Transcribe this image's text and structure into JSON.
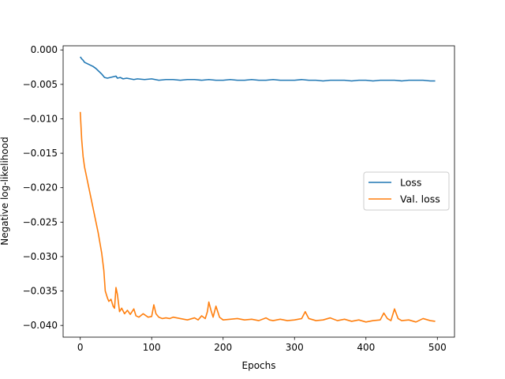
{
  "chart_data": {
    "type": "line",
    "xlabel": "Epochs",
    "ylabel": "Negative log-likelihood",
    "xlim": [
      -24,
      524
    ],
    "ylim": [
      -0.0417,
      0.0006
    ],
    "xticks": [
      0,
      100,
      200,
      300,
      400,
      500
    ],
    "xtick_labels": [
      "0",
      "100",
      "200",
      "300",
      "400",
      "500"
    ],
    "yticks": [
      0.0,
      -0.005,
      -0.01,
      -0.015,
      -0.02,
      -0.025,
      -0.03,
      -0.035,
      -0.04
    ],
    "ytick_labels": [
      "0.000",
      "−0.005",
      "−0.010",
      "−0.015",
      "−0.020",
      "−0.025",
      "−0.030",
      "−0.035",
      "−0.040"
    ],
    "grid": false,
    "legend_position": "center-right",
    "series": [
      {
        "name": "Loss",
        "color": "#1f77b4",
        "x": [
          0,
          2,
          4,
          6,
          8,
          10,
          14,
          18,
          22,
          26,
          30,
          34,
          38,
          42,
          46,
          50,
          52,
          56,
          60,
          65,
          70,
          75,
          80,
          90,
          100,
          110,
          120,
          130,
          140,
          150,
          160,
          170,
          180,
          190,
          200,
          210,
          220,
          230,
          240,
          250,
          260,
          270,
          280,
          290,
          300,
          310,
          320,
          330,
          340,
          350,
          360,
          370,
          380,
          390,
          400,
          410,
          420,
          430,
          440,
          450,
          460,
          470,
          480,
          490,
          497
        ],
        "y": [
          -0.001,
          -0.0013,
          -0.0015,
          -0.0018,
          -0.0019,
          -0.002,
          -0.0022,
          -0.0024,
          -0.0027,
          -0.0031,
          -0.0035,
          -0.004,
          -0.0041,
          -0.004,
          -0.0039,
          -0.0038,
          -0.0041,
          -0.004,
          -0.0042,
          -0.0041,
          -0.0042,
          -0.0043,
          -0.0042,
          -0.0043,
          -0.0042,
          -0.0044,
          -0.0043,
          -0.0043,
          -0.0044,
          -0.0043,
          -0.0043,
          -0.0044,
          -0.0043,
          -0.0044,
          -0.0044,
          -0.0043,
          -0.0044,
          -0.0044,
          -0.0043,
          -0.0044,
          -0.0044,
          -0.0043,
          -0.0044,
          -0.0044,
          -0.0044,
          -0.0043,
          -0.0044,
          -0.0044,
          -0.0045,
          -0.0044,
          -0.0044,
          -0.0044,
          -0.0045,
          -0.0044,
          -0.0044,
          -0.0045,
          -0.0044,
          -0.0044,
          -0.0044,
          -0.0045,
          -0.0044,
          -0.0044,
          -0.0044,
          -0.0045,
          -0.0045
        ]
      },
      {
        "name": "Val. loss",
        "color": "#ff7f0e",
        "x": [
          0,
          2,
          4,
          6,
          8,
          10,
          15,
          20,
          25,
          30,
          33,
          35,
          38,
          40,
          43,
          46,
          48,
          50,
          52,
          55,
          58,
          62,
          66,
          70,
          75,
          78,
          82,
          88,
          95,
          100,
          103,
          106,
          110,
          115,
          120,
          125,
          130,
          140,
          150,
          160,
          165,
          170,
          175,
          178,
          180,
          183,
          186,
          190,
          195,
          200,
          210,
          220,
          230,
          240,
          250,
          260,
          265,
          270,
          280,
          290,
          300,
          310,
          315,
          320,
          330,
          340,
          350,
          360,
          370,
          380,
          390,
          400,
          410,
          420,
          425,
          430,
          435,
          440,
          445,
          450,
          460,
          470,
          480,
          490,
          497
        ],
        "y": [
          -0.009,
          -0.013,
          -0.0155,
          -0.017,
          -0.018,
          -0.019,
          -0.0215,
          -0.024,
          -0.0265,
          -0.0295,
          -0.032,
          -0.035,
          -0.036,
          -0.0365,
          -0.0362,
          -0.0372,
          -0.0375,
          -0.0345,
          -0.0355,
          -0.038,
          -0.0375,
          -0.0383,
          -0.0378,
          -0.0384,
          -0.0376,
          -0.0386,
          -0.0388,
          -0.0383,
          -0.0388,
          -0.0387,
          -0.037,
          -0.0383,
          -0.0388,
          -0.039,
          -0.0389,
          -0.039,
          -0.0388,
          -0.039,
          -0.0392,
          -0.0389,
          -0.0392,
          -0.0386,
          -0.039,
          -0.038,
          -0.0366,
          -0.0378,
          -0.0388,
          -0.0372,
          -0.0388,
          -0.0392,
          -0.0391,
          -0.039,
          -0.0392,
          -0.0391,
          -0.0393,
          -0.0389,
          -0.0392,
          -0.0393,
          -0.0391,
          -0.0393,
          -0.0392,
          -0.039,
          -0.038,
          -0.039,
          -0.0393,
          -0.0392,
          -0.0389,
          -0.0393,
          -0.0391,
          -0.0394,
          -0.0392,
          -0.0395,
          -0.0393,
          -0.0392,
          -0.0382,
          -0.039,
          -0.0393,
          -0.0376,
          -0.039,
          -0.0393,
          -0.0392,
          -0.0395,
          -0.039,
          -0.0393,
          -0.0394
        ]
      }
    ]
  }
}
